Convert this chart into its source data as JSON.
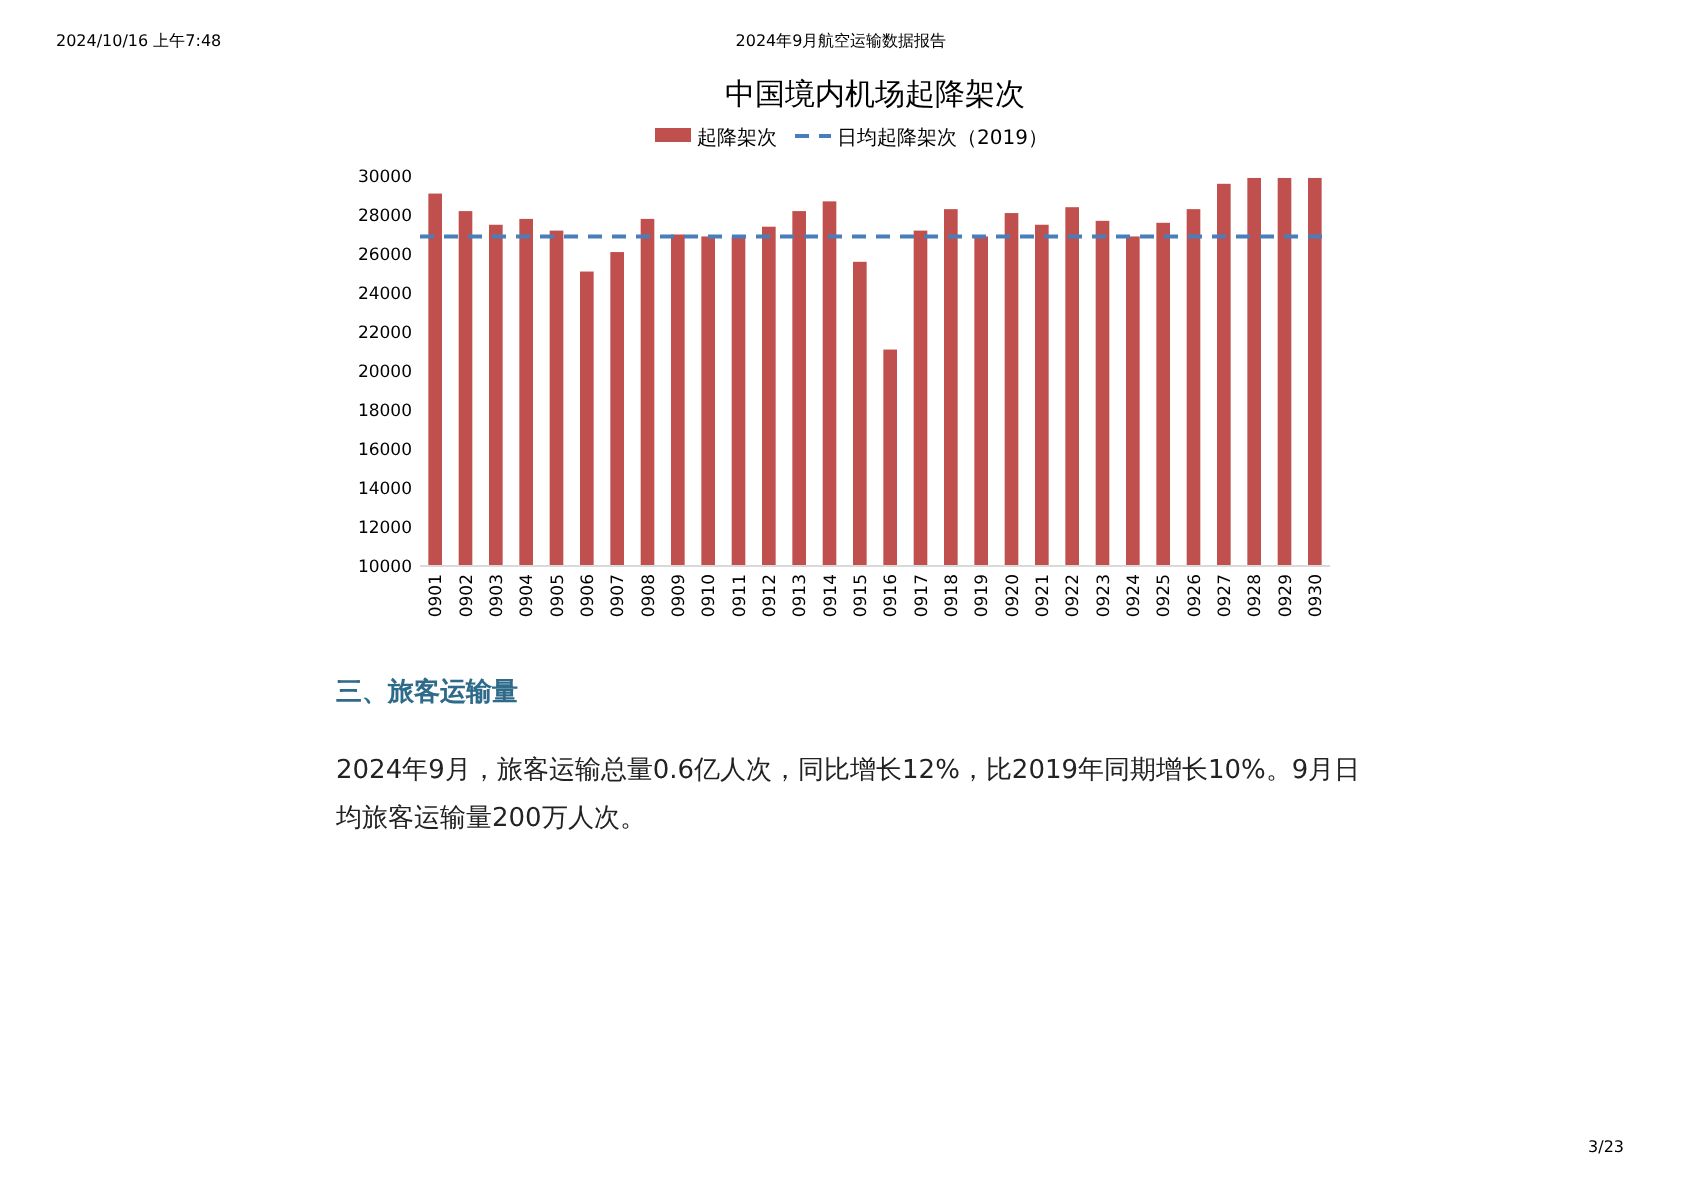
{
  "chart_data": {
    "type": "bar",
    "title": "中国境内机场起降架次",
    "categories": [
      "0901",
      "0902",
      "0903",
      "0904",
      "0905",
      "0906",
      "0907",
      "0908",
      "0909",
      "0910",
      "0911",
      "0912",
      "0913",
      "0914",
      "0915",
      "0916",
      "0917",
      "0918",
      "0919",
      "0920",
      "0921",
      "0922",
      "0923",
      "0924",
      "0925",
      "0926",
      "0927",
      "0928",
      "0929",
      "0930"
    ],
    "series": [
      {
        "name": "起降架次",
        "color": "#c0504d",
        "values": [
          29100,
          28200,
          27500,
          27800,
          27200,
          25100,
          26100,
          27800,
          27000,
          26900,
          26900,
          27400,
          28200,
          28700,
          25600,
          21100,
          27200,
          28300,
          26900,
          28100,
          27500,
          28400,
          27700,
          26900,
          27600,
          28300,
          29600,
          29900,
          29900,
          29900
        ]
      }
    ],
    "ylim": [
      10000,
      30000
    ],
    "yticks": [
      10000,
      12000,
      14000,
      16000,
      18000,
      20000,
      22000,
      24000,
      26000,
      28000,
      30000
    ],
    "ref_lines": [
      {
        "axis": "y",
        "value": 26900,
        "label": "日均起降架次（2019）",
        "color": "#4a7ebb",
        "line_style": "dashed"
      }
    ],
    "grid": false,
    "legend": "top",
    "annotations": [
      "2024/10/16 上午7:48",
      "2024年9月航空运输数据报告",
      "三、旅客运输量",
      "2024年9月，旅客运输总量0.6亿人次，同比增长12%，比2019年同期增长10%。9月日均旅客运输量200万人次。",
      "3/23"
    ]
  }
}
